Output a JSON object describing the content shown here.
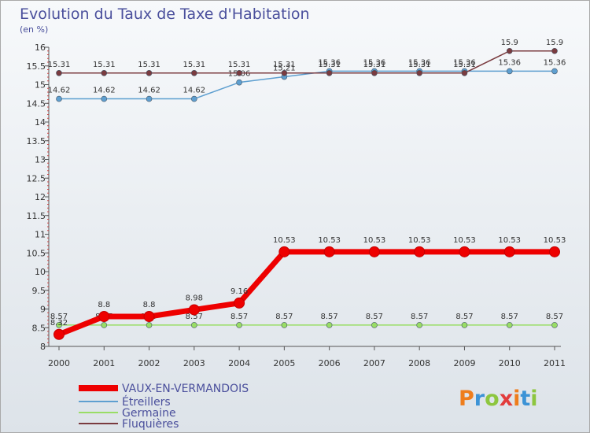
{
  "chart_data": {
    "type": "line",
    "title": "Evolution du Taux de Taxe d'Habitation",
    "subtitle": "(en %)",
    "xlabel": "",
    "ylabel": "",
    "ylim": [
      8,
      16
    ],
    "y_ticks": [
      "8",
      "8.5",
      "9",
      "9.5",
      "10",
      "10.5",
      "11",
      "11.5",
      "12",
      "12.5",
      "13",
      "13.5",
      "14",
      "14.5",
      "15",
      "15.5",
      "16"
    ],
    "categories": [
      "2000",
      "2001",
      "2002",
      "2003",
      "2004",
      "2005",
      "2006",
      "2007",
      "2008",
      "2009",
      "2010",
      "2011"
    ],
    "series": [
      {
        "name": "VAUX-EN-VERMANDOIS",
        "color": "#ee0000",
        "values": [
          8.32,
          8.8,
          8.8,
          8.98,
          9.16,
          10.53,
          10.53,
          10.53,
          10.53,
          10.53,
          10.53,
          10.53
        ],
        "labels": [
          "8.32",
          "8.8",
          "8.8",
          "8.98",
          "9.16",
          "10.53",
          "10.53",
          "10.53",
          "10.53",
          "10.53",
          "10.53",
          "10.53"
        ]
      },
      {
        "name": "Étreillers",
        "color": "#5e9fd0",
        "values": [
          14.62,
          14.62,
          14.62,
          14.62,
          15.06,
          15.21,
          15.36,
          15.36,
          15.36,
          15.36,
          15.36,
          15.36
        ],
        "labels": [
          "14.62",
          "14.62",
          "14.62",
          "14.62",
          "15.06",
          "15.21",
          "15.36",
          "15.36",
          "15.36",
          "15.36",
          "15.36",
          "15.36"
        ]
      },
      {
        "name": "Germaine",
        "color": "#99dd66",
        "values": [
          8.57,
          8.57,
          8.57,
          8.57,
          8.57,
          8.57,
          8.57,
          8.57,
          8.57,
          8.57,
          8.57,
          8.57
        ],
        "labels": [
          "8.57",
          "8.57",
          "8.57",
          "8.57",
          "8.57",
          "8.57",
          "8.57",
          "8.57",
          "8.57",
          "8.57",
          "8.57",
          "8.57"
        ]
      },
      {
        "name": "Fluquières",
        "color": "#7a3b3f",
        "values": [
          15.31,
          15.31,
          15.31,
          15.31,
          15.31,
          15.31,
          15.31,
          15.31,
          15.31,
          15.31,
          15.9,
          15.9
        ],
        "labels": [
          "15.31",
          "15.31",
          "15.31",
          "15.31",
          "15.31",
          "15.31",
          "15.31",
          "15.31",
          "15.31",
          "15.31",
          "15.9",
          "15.9"
        ]
      }
    ],
    "legend_position": "bottom-left",
    "grid": false
  },
  "branding": {
    "logo_text": "Proxiti",
    "letter_colors": [
      "#ee7d1c",
      "#3c93d6",
      "#8dc63f",
      "#e23c3c",
      "#ee7d1c",
      "#3c93d6",
      "#8dc63f"
    ]
  }
}
